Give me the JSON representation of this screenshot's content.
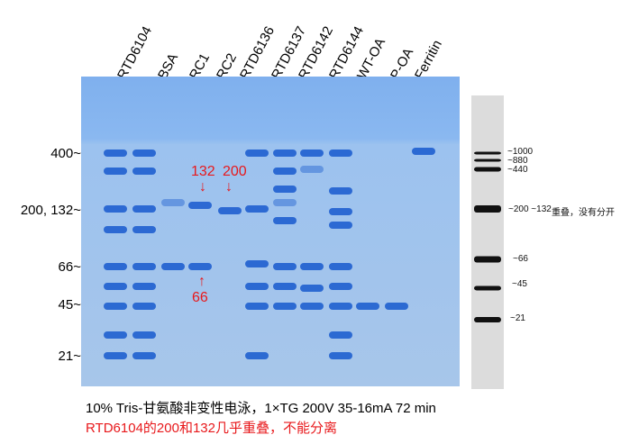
{
  "lanes": [
    "RTD6104",
    "BSA",
    "RC1",
    "RC2",
    "RTD6136",
    "RTD6137",
    "RTD6142",
    "RTD6144",
    "WT-OA",
    "P-OA",
    "Ferritin"
  ],
  "mw_markers": [
    "400~",
    "200, 132~",
    "66~",
    "45~",
    "21~"
  ],
  "annotations": {
    "a132": "132",
    "a200": "200",
    "a66": "66",
    "down_arrow": "↓",
    "up_arrow": "↑"
  },
  "ladder_labels": [
    "~1000",
    "~880",
    "~440",
    "~200 ~132",
    "重叠，没有分开",
    "~66",
    "~45",
    "~21"
  ],
  "caption": {
    "line1": "10% Tris-甘氨酸非变性电泳，1×TG 200V 35-16mA 72 min",
    "line2": "RTD6104的200和132几乎重叠，不能分离"
  },
  "colors": {
    "gel": "#8db6ea",
    "band": "#1f5fcf",
    "annotation": "#e8191c"
  }
}
